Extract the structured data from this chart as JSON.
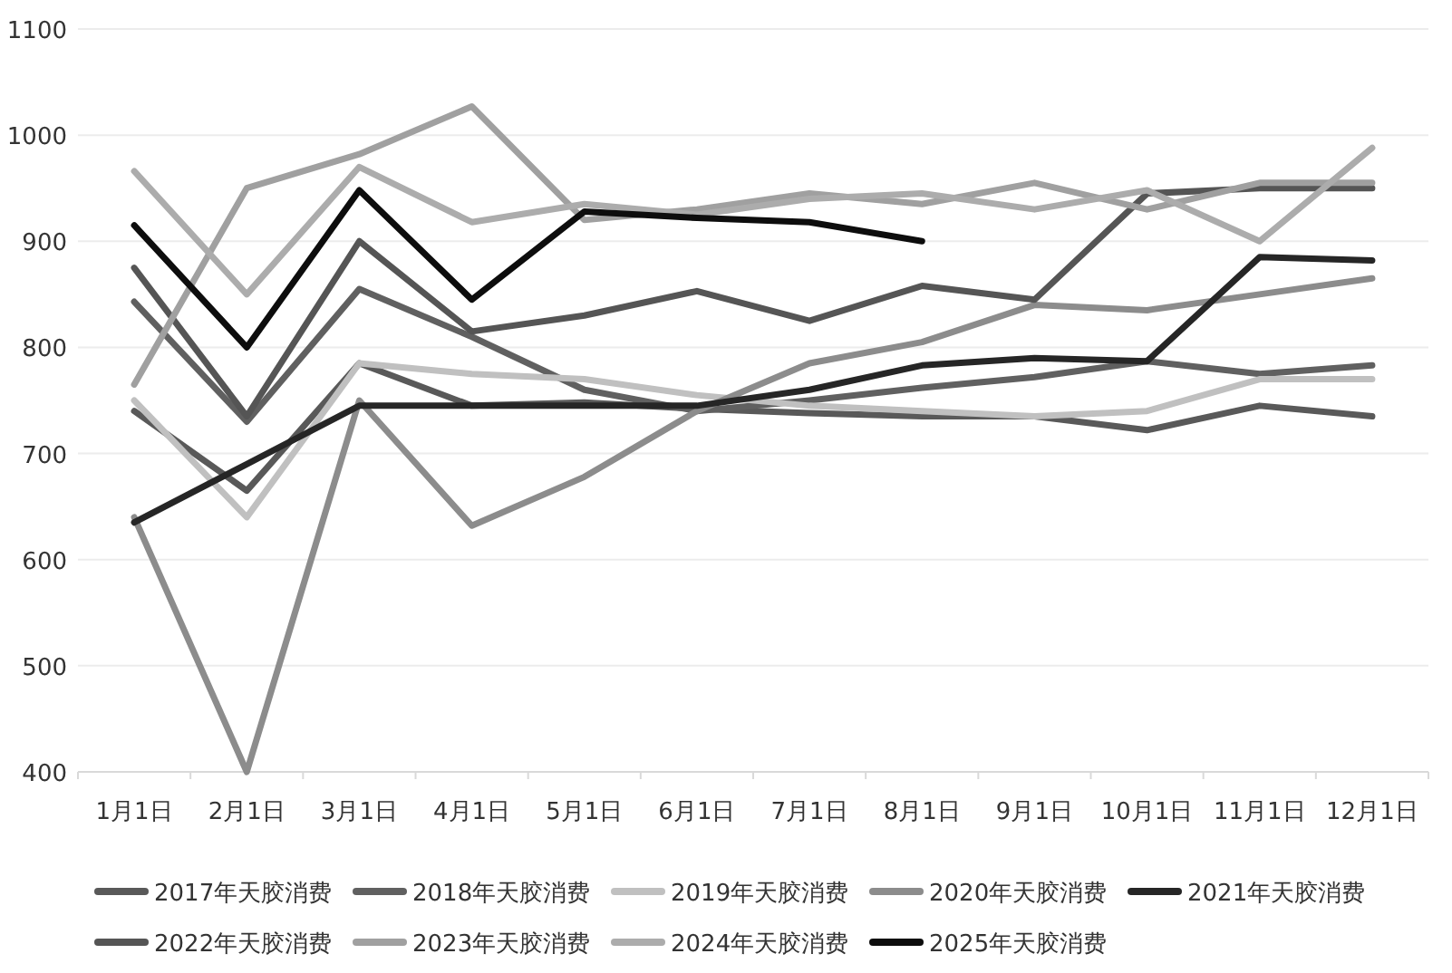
{
  "chart_data": {
    "type": "line",
    "categories": [
      "1月1日",
      "2月1日",
      "3月1日",
      "4月1日",
      "5月1日",
      "6月1日",
      "7月1日",
      "8月1日",
      "9月1日",
      "10月1日",
      "11月1日",
      "12月1日"
    ],
    "series": [
      {
        "name": "2017年天胶消费",
        "color": "#595959",
        "values": [
          740,
          665,
          785,
          745,
          748,
          742,
          738,
          735,
          735,
          722,
          745,
          735
        ]
      },
      {
        "name": "2018年天胶消费",
        "color": "#606060",
        "values": [
          843,
          730,
          855,
          810,
          760,
          740,
          750,
          762,
          772,
          787,
          775,
          783
        ]
      },
      {
        "name": "2019年天胶消费",
        "color": "#c0c0c0",
        "values": [
          750,
          640,
          785,
          775,
          770,
          755,
          745,
          740,
          735,
          740,
          770,
          770
        ]
      },
      {
        "name": "2020年天胶消费",
        "color": "#8c8c8c",
        "values": [
          640,
          400,
          750,
          632,
          678,
          740,
          785,
          805,
          840,
          835,
          850,
          865
        ]
      },
      {
        "name": "2021年天胶消费",
        "color": "#262626",
        "values": [
          635,
          690,
          745,
          745,
          745,
          745,
          760,
          783,
          790,
          787,
          885,
          882
        ]
      },
      {
        "name": "2022年天胶消费",
        "color": "#555555",
        "values": [
          875,
          735,
          900,
          815,
          830,
          853,
          825,
          858,
          845,
          945,
          950,
          950
        ]
      },
      {
        "name": "2023年天胶消费",
        "color": "#a0a0a0",
        "values": [
          765,
          950,
          982,
          1027,
          920,
          930,
          945,
          935,
          955,
          930,
          955,
          955
        ]
      },
      {
        "name": "2024年天胶消费",
        "color": "#acacac",
        "values": [
          966,
          850,
          970,
          918,
          935,
          925,
          940,
          945,
          930,
          948,
          900,
          988
        ]
      },
      {
        "name": "2025年天胶消费",
        "color": "#0d0d0d",
        "values": [
          915,
          800,
          948,
          845,
          928,
          922,
          918,
          900,
          null,
          null,
          null,
          null
        ]
      }
    ],
    "ylim": [
      400,
      1100
    ],
    "yticks": [
      400,
      500,
      600,
      700,
      800,
      900,
      1000,
      1100
    ],
    "grid": "y",
    "legend": "bottom",
    "marker": "none",
    "line_style": "solid"
  }
}
